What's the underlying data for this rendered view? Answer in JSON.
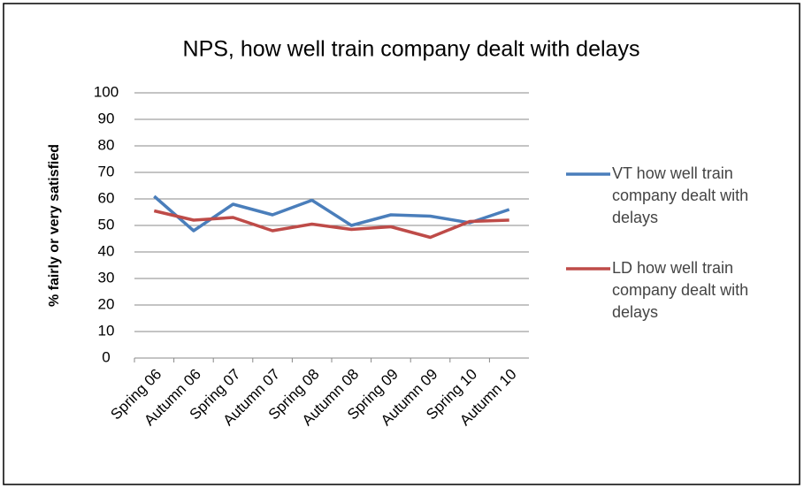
{
  "chart_data": {
    "type": "line",
    "title": "NPS, how well train company dealt with delays",
    "y_label": "% fairly or very satisfied",
    "categories": [
      "Spring 06",
      "Autumn 06",
      "Spring 07",
      "Autumn 07",
      "Spring 08",
      "Autumn 08",
      "Spring 09",
      "Autumn 09",
      "Spring 10",
      "Autumn 10"
    ],
    "series": [
      {
        "name": "VT how well train company dealt with delays",
        "color": "#4a7ebb",
        "values": [
          61,
          48,
          58,
          54,
          59.5,
          50,
          54,
          53.5,
          51,
          56
        ]
      },
      {
        "name": "LD how well train company dealt with delays",
        "color": "#be4b48",
        "values": [
          55.5,
          52,
          53,
          48,
          50.5,
          48.5,
          49.5,
          45.5,
          51.5,
          52
        ]
      }
    ],
    "ylim": [
      0,
      100
    ],
    "yticks": [
      0,
      10,
      20,
      30,
      40,
      50,
      60,
      70,
      80,
      90,
      100
    ],
    "grid": true,
    "legend": "right"
  }
}
